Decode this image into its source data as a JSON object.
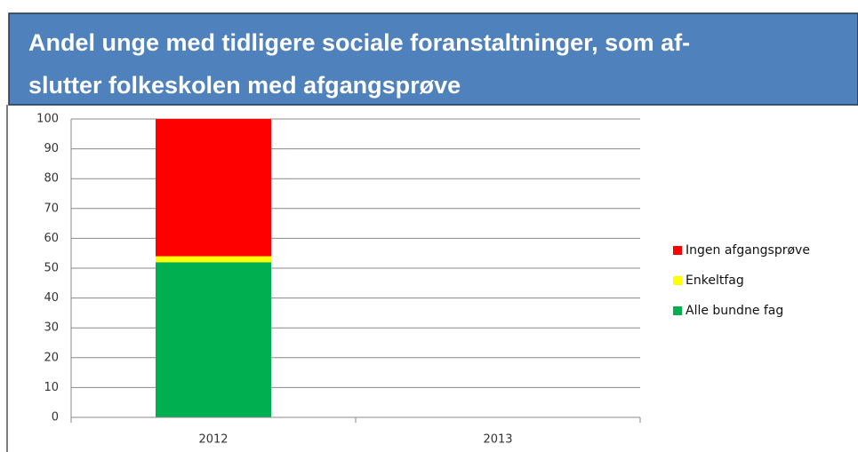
{
  "chart_data": {
    "type": "stacked_bar",
    "title": [
      "Andel unge med tidligere sociale foranstaltninger, som af-",
      "slutter folkeskolen med afgangsprøve"
    ],
    "categories": [
      "2012",
      "2013"
    ],
    "series": [
      {
        "name": "Alle bundne fag",
        "color": "#00b050",
        "values": [
          52,
          null
        ]
      },
      {
        "name": "Enkeltfag",
        "color": "#ffff00",
        "values": [
          2,
          null
        ]
      },
      {
        "name": "Ingen afgangsprøve",
        "color": "#ff0000",
        "values": [
          46,
          null
        ]
      }
    ],
    "ylim": [
      0,
      100
    ],
    "yticks": [
      0,
      10,
      20,
      30,
      40,
      50,
      60,
      70,
      80,
      90,
      100
    ],
    "grid": true,
    "legend": "right"
  }
}
